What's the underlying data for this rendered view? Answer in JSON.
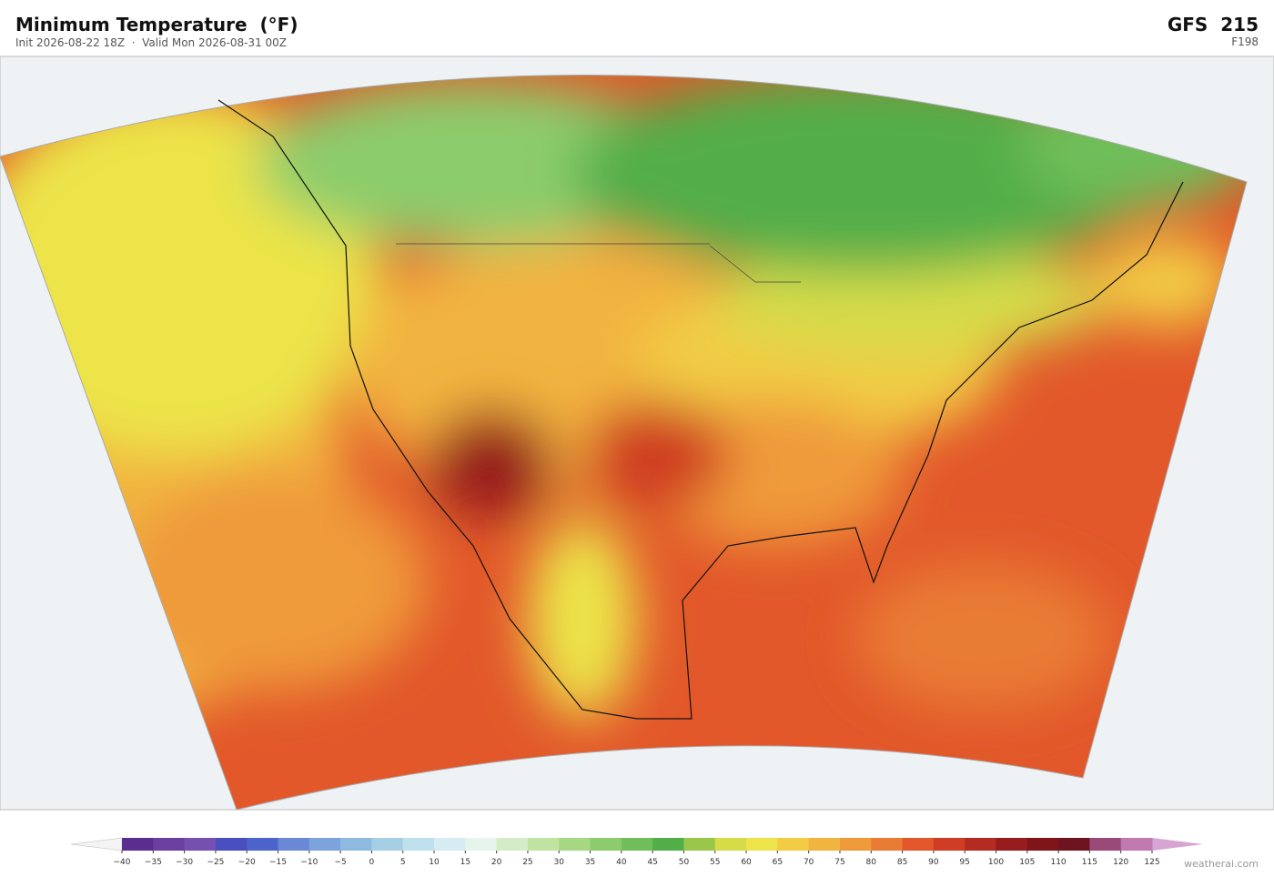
{
  "header": {
    "title": "Minimum Temperature  (°F)",
    "subtitle": "Init 2026-08-22 18Z  ·  Valid Mon 2026-08-31 00Z",
    "model": "GFS  215",
    "forecast_hour": "F198"
  },
  "colorbar": {
    "under_color": "#f4f4f4",
    "over_color": "#d8a4d4",
    "colors": [
      "#5b2d8e",
      "#6a3fa0",
      "#7550b0",
      "#4a4fc0",
      "#4d63cc",
      "#6a88d6",
      "#7da3dc",
      "#8fbae0",
      "#a6cfe6",
      "#bfe1ee",
      "#d6ecf2",
      "#e6f4ec",
      "#d4edc8",
      "#bfe3a0",
      "#a6d884",
      "#8ccc6c",
      "#6fbe5a",
      "#52ae48",
      "#9ac74a",
      "#d6dc48",
      "#ece44a",
      "#f2cc44",
      "#f2b440",
      "#ef9a3a",
      "#e97c34",
      "#e2582a",
      "#cf3e24",
      "#b42b22",
      "#961c1e",
      "#7f1518",
      "#6e1420",
      "#9a4a78",
      "#c07ab0"
    ],
    "ticks": [
      {
        "value": -40,
        "label": "−40"
      },
      {
        "value": -35,
        "label": "−35"
      },
      {
        "value": -30,
        "label": "−30"
      },
      {
        "value": -25,
        "label": "−25"
      },
      {
        "value": -20,
        "label": "−20"
      },
      {
        "value": -15,
        "label": "−15"
      },
      {
        "value": -10,
        "label": "−10"
      },
      {
        "value": -5,
        "label": "−5"
      },
      0,
      5,
      10,
      15,
      20,
      25,
      30,
      35,
      40,
      45,
      50,
      55,
      60,
      65,
      70,
      75,
      80,
      85,
      90,
      95,
      100,
      105,
      110,
      115,
      120,
      125
    ]
  },
  "footer": {
    "credit": "weatherai.com"
  }
}
